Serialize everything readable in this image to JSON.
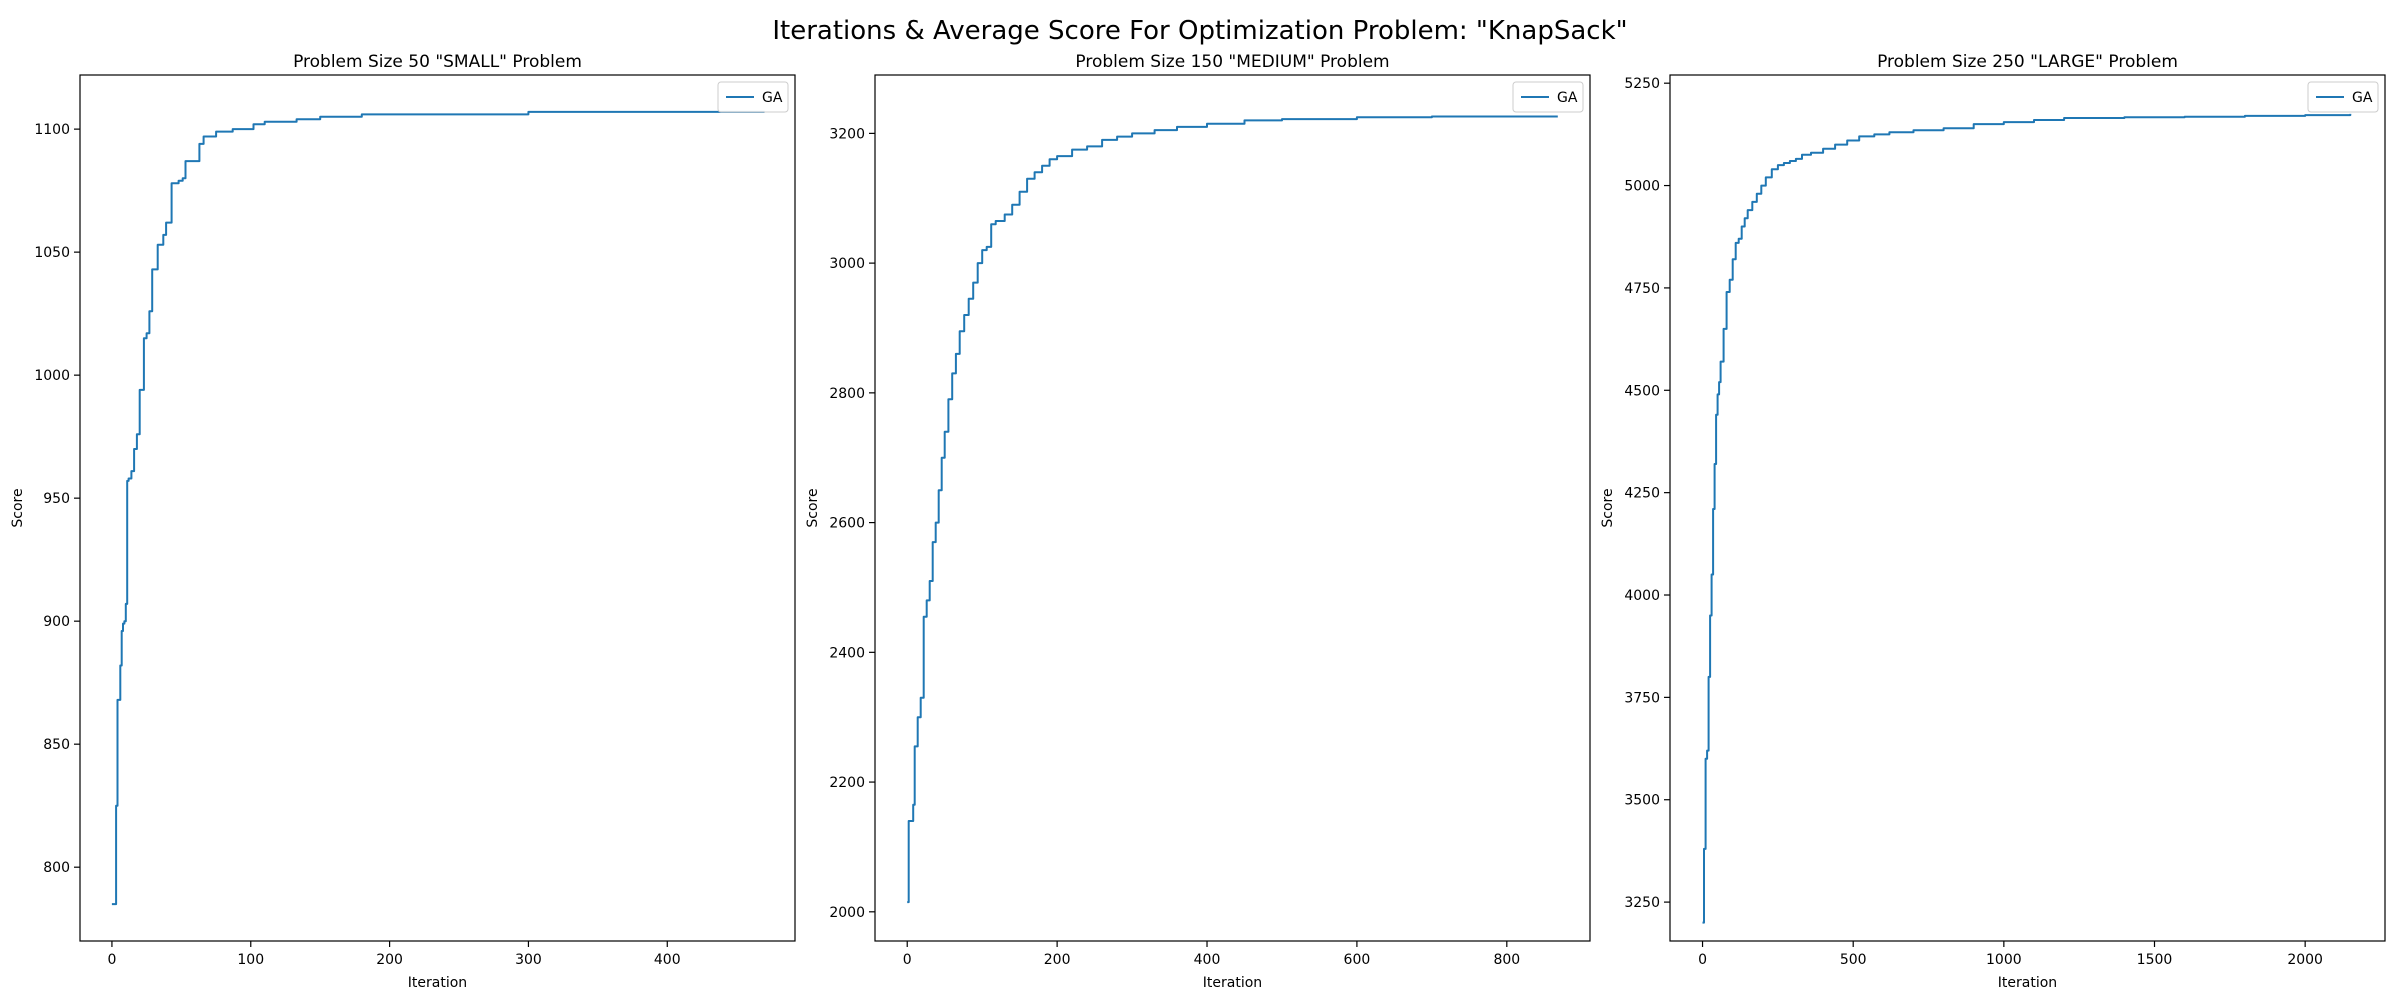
{
  "suptitle": "Iterations & Average Score For Optimization Problem: \"KnapSack\"",
  "colors": {
    "series": "#1f77b4"
  },
  "chart_data": [
    {
      "type": "line",
      "title": "Problem Size 50 \"SMALL\" Problem",
      "xlabel": "Iteration",
      "ylabel": "Score",
      "xlim": [
        -23,
        492
      ],
      "ylim": [
        770,
        1122
      ],
      "xticks": [
        0,
        100,
        200,
        300,
        400
      ],
      "yticks": [
        800,
        850,
        900,
        950,
        1000,
        1050,
        1100
      ],
      "grid": false,
      "legend": "top-right",
      "series": [
        {
          "name": "GA",
          "x": [
            0,
            2,
            3,
            4,
            5,
            6,
            7,
            8,
            9,
            10,
            11,
            12,
            14,
            16,
            18,
            20,
            21,
            23,
            25,
            27,
            29,
            31,
            33,
            35,
            37,
            39,
            41,
            43,
            45,
            48,
            51,
            53,
            56,
            60,
            63,
            66,
            70,
            75,
            80,
            87,
            95,
            102,
            110,
            120,
            133,
            150,
            180,
            220,
            300,
            400,
            470
          ],
          "y": [
            785,
            785,
            825,
            868,
            868,
            882,
            896,
            899,
            900,
            907,
            957,
            958,
            961,
            970,
            976,
            994,
            994,
            1015,
            1017,
            1026,
            1043,
            1043,
            1053,
            1053,
            1057,
            1062,
            1062,
            1078,
            1078,
            1079,
            1080,
            1087,
            1087,
            1087,
            1094,
            1097,
            1097,
            1099,
            1099,
            1100,
            1100,
            1102,
            1103,
            1103,
            1104,
            1105,
            1106,
            1106,
            1107,
            1107,
            1107
          ]
        }
      ]
    },
    {
      "type": "line",
      "title": "Problem Size 150 \"MEDIUM\" Problem",
      "xlabel": "Iteration",
      "ylabel": "Score",
      "xlim": [
        -43,
        911
      ],
      "ylim": [
        1955,
        3290
      ],
      "xticks": [
        0,
        200,
        400,
        600,
        800
      ],
      "yticks": [
        2000,
        2200,
        2400,
        2600,
        2800,
        3000,
        3200
      ],
      "grid": false,
      "legend": "top-right",
      "series": [
        {
          "name": "GA",
          "x": [
            0,
            2,
            4,
            8,
            10,
            14,
            18,
            22,
            26,
            30,
            34,
            38,
            42,
            46,
            50,
            55,
            60,
            65,
            70,
            76,
            82,
            88,
            94,
            100,
            106,
            112,
            118,
            130,
            140,
            150,
            160,
            170,
            180,
            190,
            200,
            220,
            240,
            260,
            280,
            300,
            330,
            360,
            400,
            450,
            500,
            600,
            700,
            868
          ],
          "y": [
            2015,
            2140,
            2140,
            2165,
            2255,
            2300,
            2330,
            2455,
            2480,
            2510,
            2570,
            2600,
            2650,
            2700,
            2740,
            2790,
            2830,
            2860,
            2895,
            2920,
            2945,
            2970,
            3000,
            3020,
            3025,
            3060,
            3065,
            3075,
            3090,
            3110,
            3130,
            3140,
            3150,
            3160,
            3165,
            3175,
            3180,
            3190,
            3195,
            3200,
            3205,
            3210,
            3215,
            3220,
            3222,
            3225,
            3226,
            3226
          ]
        }
      ]
    },
    {
      "type": "line",
      "title": "Problem Size 250 \"LARGE\" Problem",
      "xlabel": "Iteration",
      "ylabel": "Score",
      "xlim": [
        -108,
        2265
      ],
      "ylim": [
        3155,
        5270
      ],
      "xticks": [
        0,
        500,
        1000,
        1500,
        2000
      ],
      "yticks": [
        3250,
        3500,
        3750,
        4000,
        4250,
        4500,
        4750,
        5000,
        5250
      ],
      "grid": false,
      "legend": "top-right",
      "series": [
        {
          "name": "GA",
          "x": [
            0,
            5,
            10,
            15,
            20,
            25,
            30,
            35,
            40,
            45,
            50,
            55,
            60,
            70,
            80,
            90,
            100,
            110,
            120,
            130,
            140,
            150,
            165,
            180,
            195,
            210,
            230,
            250,
            270,
            290,
            310,
            330,
            360,
            400,
            440,
            480,
            520,
            570,
            620,
            700,
            800,
            900,
            1000,
            1100,
            1200,
            1400,
            1600,
            1800,
            2000,
            2150
          ],
          "y": [
            3200,
            3380,
            3600,
            3620,
            3800,
            3950,
            4050,
            4210,
            4320,
            4440,
            4490,
            4520,
            4570,
            4650,
            4740,
            4770,
            4820,
            4860,
            4870,
            4900,
            4920,
            4940,
            4960,
            4980,
            5000,
            5020,
            5040,
            5050,
            5055,
            5060,
            5065,
            5075,
            5080,
            5090,
            5100,
            5110,
            5120,
            5125,
            5130,
            5135,
            5140,
            5150,
            5155,
            5160,
            5165,
            5167,
            5168,
            5170,
            5172,
            5175
          ]
        }
      ]
    }
  ]
}
